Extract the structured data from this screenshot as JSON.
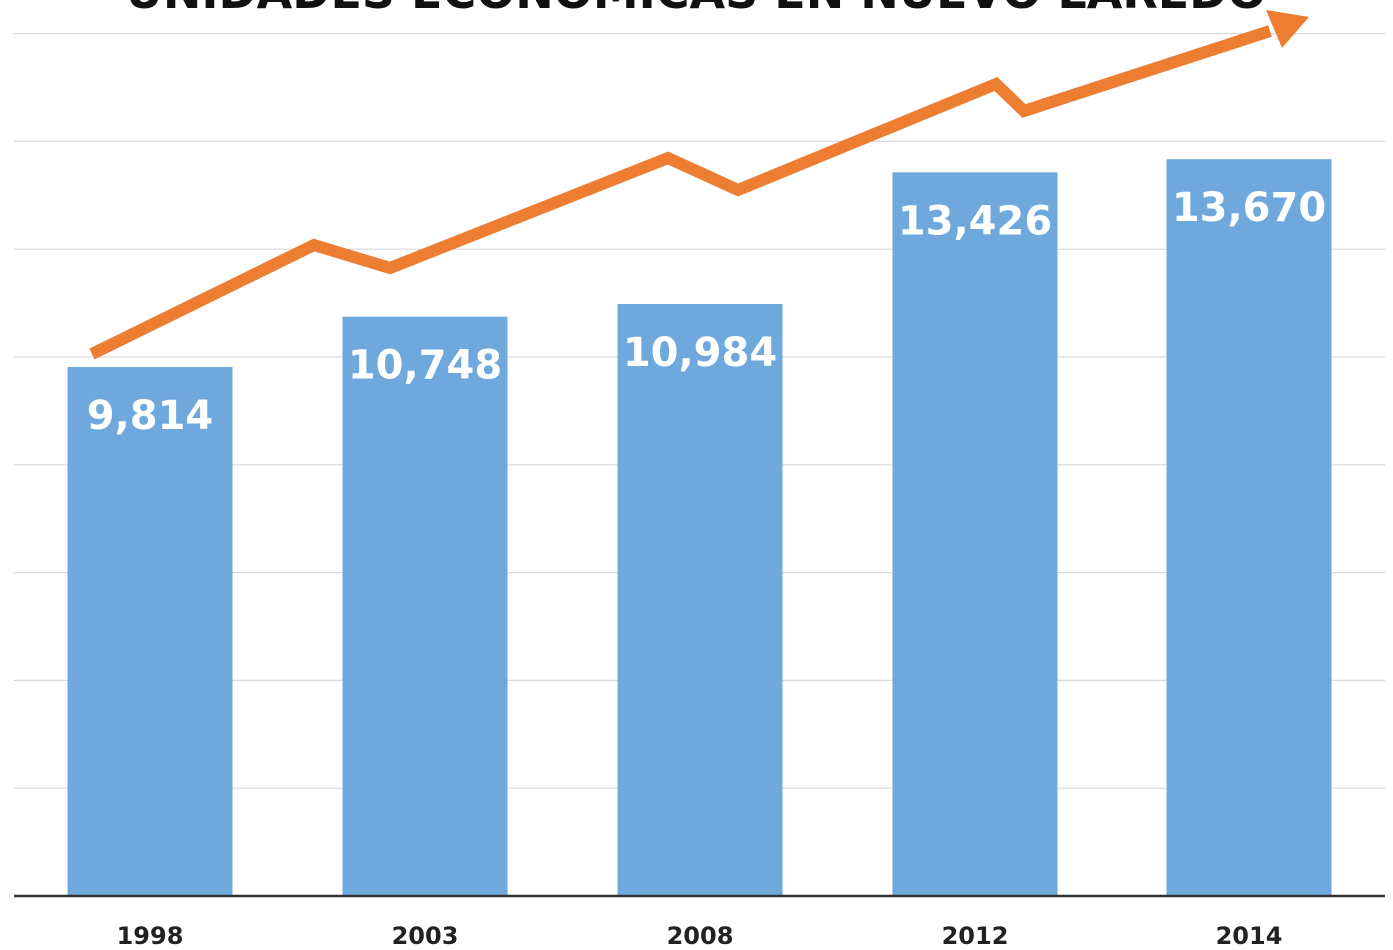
{
  "chart_data": {
    "type": "bar",
    "title": "UNIDADES ECONÓMICAS EN NUEVO LAREDO",
    "categories": [
      "1998",
      "2003",
      "2008",
      "2012",
      "2014"
    ],
    "values": [
      9814,
      10748,
      10984,
      13426,
      13670
    ],
    "value_labels": [
      "9,814",
      "10,748",
      "10,984",
      "13,426",
      "13,670"
    ],
    "xlabel": "",
    "ylabel": "",
    "ylim": [
      0,
      16000
    ],
    "grid": true,
    "legend": "none",
    "trend_arrow": true,
    "colors": {
      "bar": "#6fa8dc",
      "arrow": "#ed7d31",
      "grid": "#d9d9d9",
      "axis": "#333333"
    }
  }
}
